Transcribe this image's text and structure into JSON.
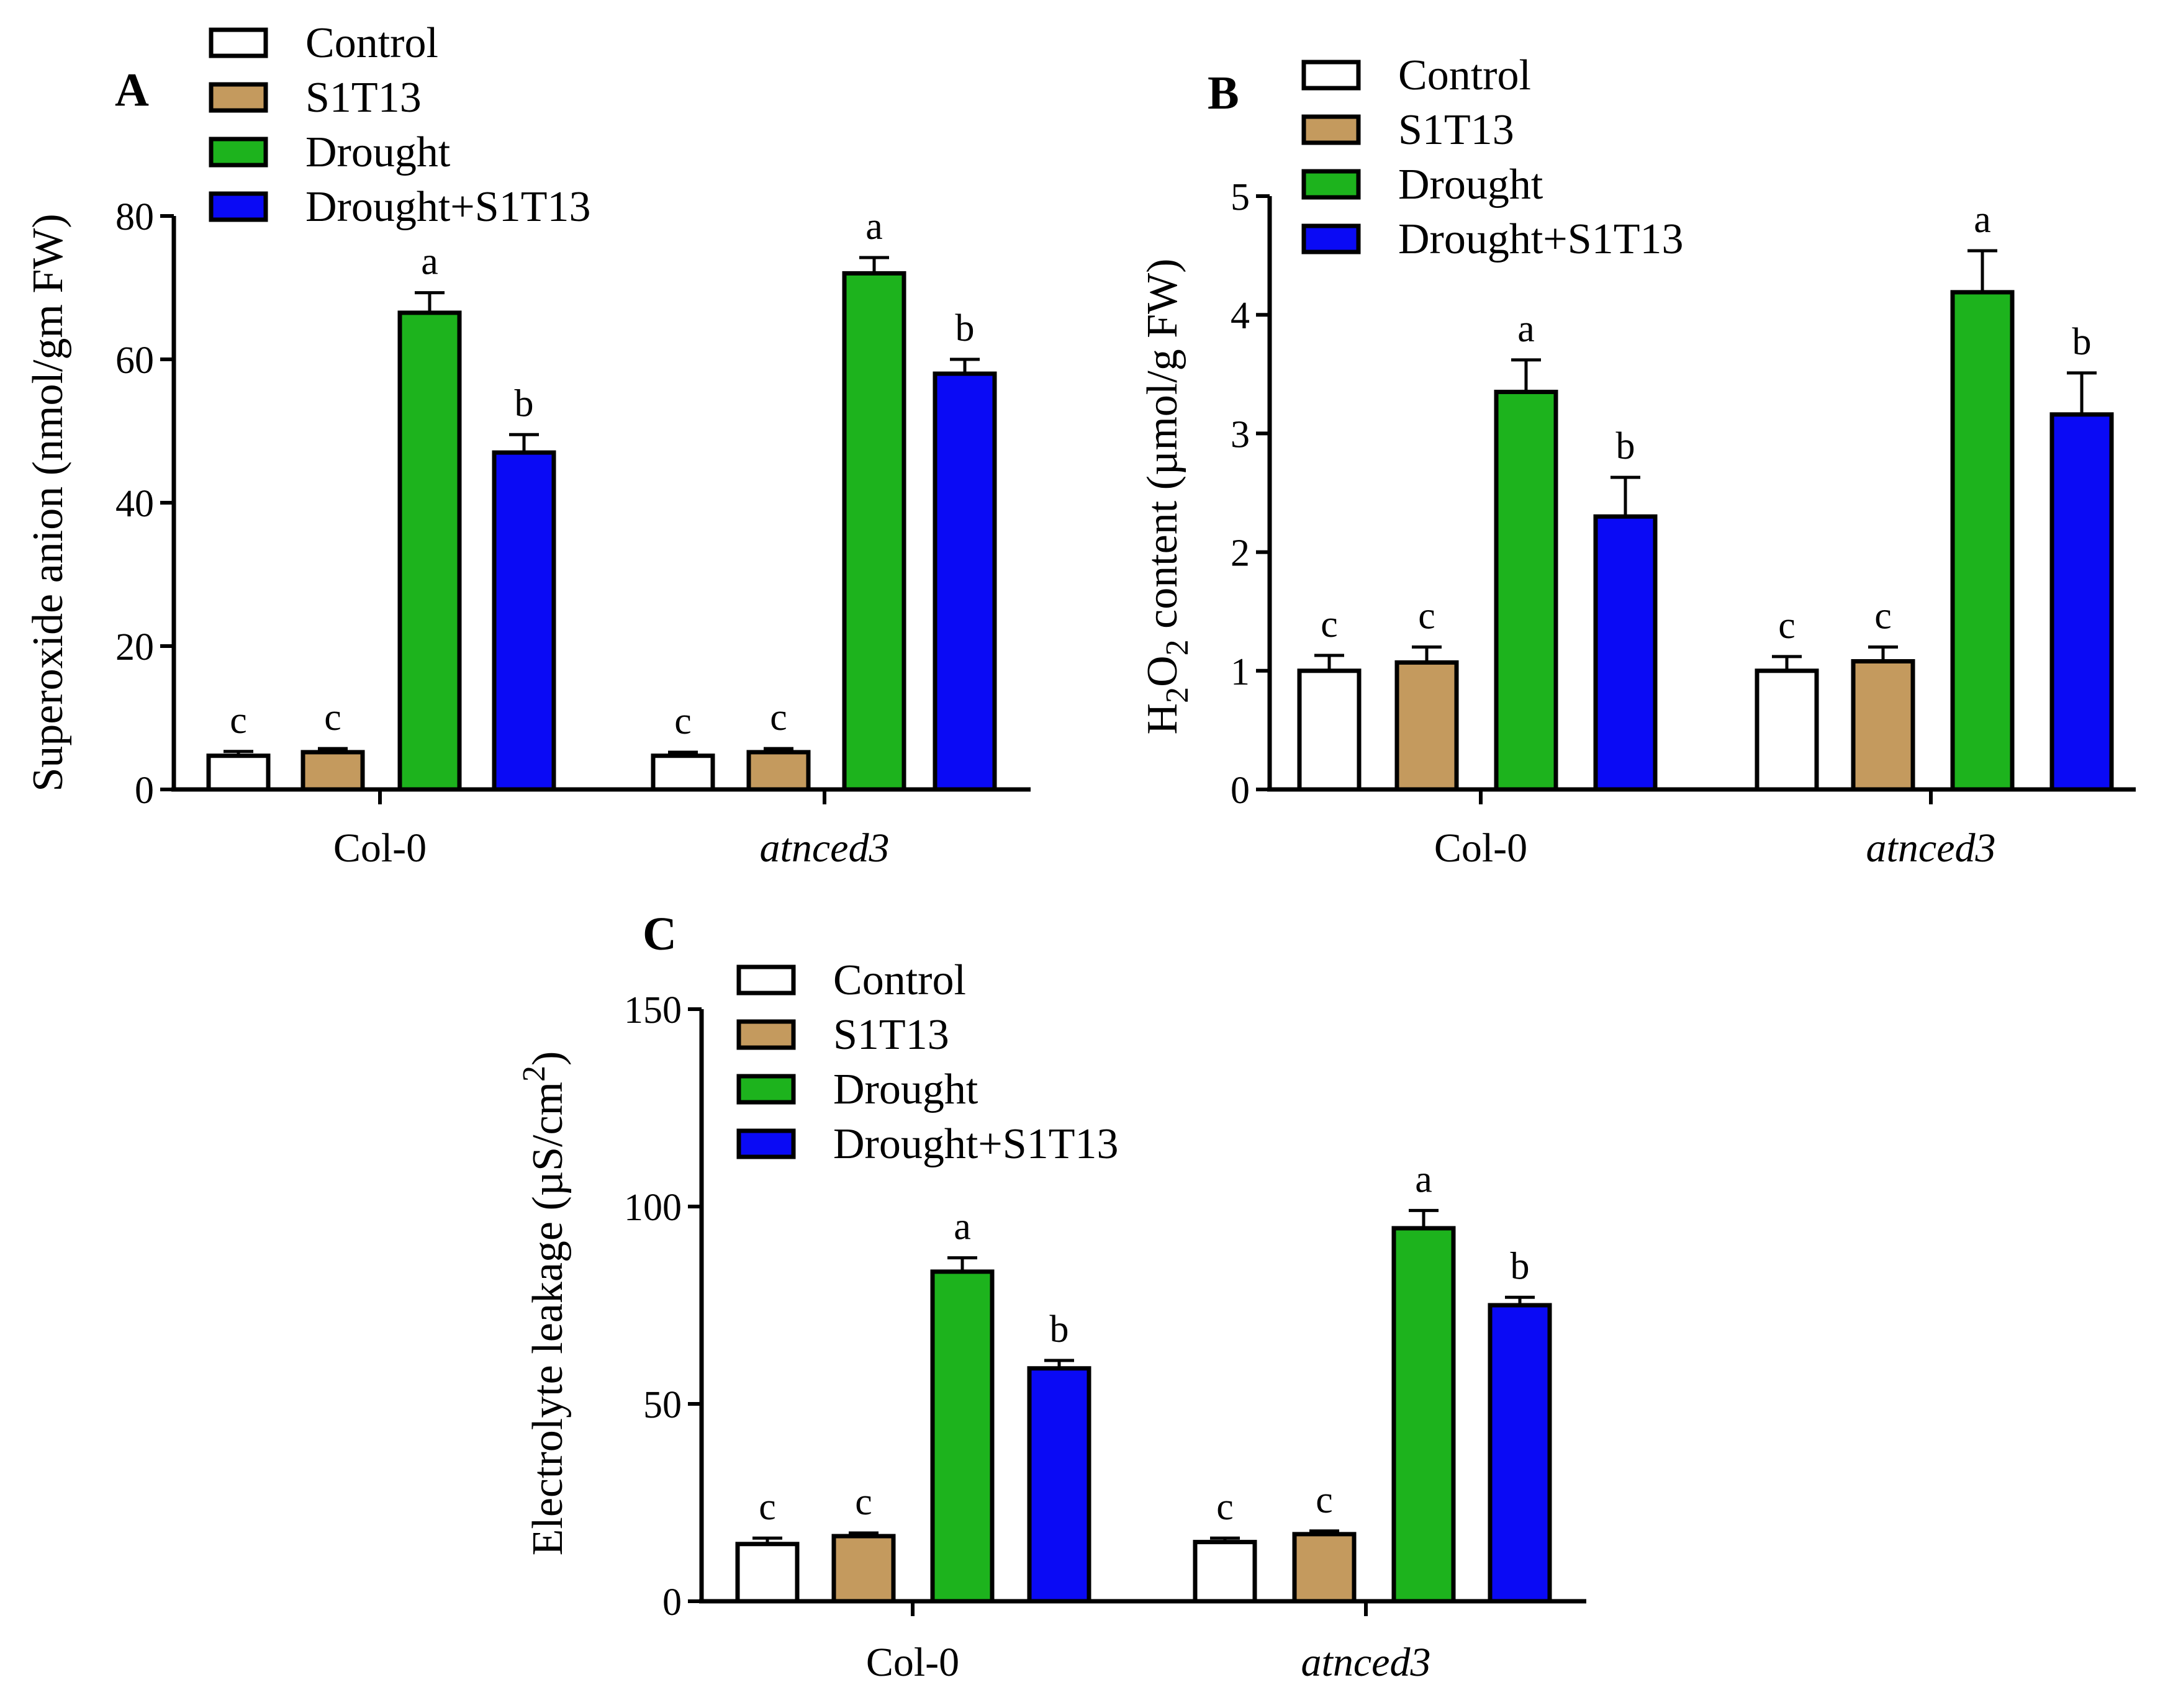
{
  "chart_data": [
    {
      "panel": "A",
      "type": "bar",
      "ylabel": "Superoxide anion (nmol/gm FW)",
      "ylim": [
        0,
        80
      ],
      "yticks": [
        "0",
        "20",
        "40",
        "60",
        "80"
      ],
      "categories": [
        "Col-0",
        "atnced3"
      ],
      "series": [
        {
          "name": "Control",
          "color": "#ffffff",
          "values": [
            4.7,
            4.7
          ],
          "errors": [
            0.6,
            0.5
          ],
          "letters": [
            "c",
            "c"
          ]
        },
        {
          "name": "S1T13",
          "color": "#c49a5e",
          "values": [
            5.2,
            5.2
          ],
          "errors": [
            0.5,
            0.5
          ],
          "letters": [
            "c",
            "c"
          ]
        },
        {
          "name": "Drought",
          "color": "#1db31d",
          "values": [
            66.5,
            72.0
          ],
          "errors": [
            2.8,
            2.2
          ],
          "letters": [
            "a",
            "a"
          ]
        },
        {
          "name": "Drought+S1T13",
          "color": "#0a0af5",
          "values": [
            47.0,
            58.0
          ],
          "errors": [
            2.5,
            2.0
          ],
          "letters": [
            "b",
            "b"
          ]
        }
      ]
    },
    {
      "panel": "B",
      "type": "bar",
      "ylabel_main": "H",
      "ylabel_sub1": "2",
      "ylabel_mid": "O",
      "ylabel_sub2": "2",
      "ylabel_rest": " content (µmol/g FW)",
      "ylim": [
        0,
        5
      ],
      "yticks": [
        "0",
        "1",
        "2",
        "3",
        "4",
        "5"
      ],
      "categories": [
        "Col-0",
        "atnced3"
      ],
      "series": [
        {
          "name": "Control",
          "color": "#ffffff",
          "values": [
            1.0,
            1.0
          ],
          "errors": [
            0.13,
            0.12
          ],
          "letters": [
            "c",
            "c"
          ]
        },
        {
          "name": "S1T13",
          "color": "#c49a5e",
          "values": [
            1.07,
            1.08
          ],
          "errors": [
            0.13,
            0.12
          ],
          "letters": [
            "c",
            "c"
          ]
        },
        {
          "name": "Drought",
          "color": "#1db31d",
          "values": [
            3.35,
            4.19
          ],
          "errors": [
            0.27,
            0.35
          ],
          "letters": [
            "a",
            "a"
          ]
        },
        {
          "name": "Drought+S1T13",
          "color": "#0a0af5",
          "values": [
            2.3,
            3.16
          ],
          "errors": [
            0.33,
            0.35
          ],
          "letters": [
            "b",
            "b"
          ]
        }
      ]
    },
    {
      "panel": "C",
      "type": "bar",
      "ylabel_main": "Electrolyte leakage (µS/cm",
      "ylabel_sup": "2",
      "ylabel_end": ")",
      "ylim": [
        0,
        150
      ],
      "yticks": [
        "0",
        "50",
        "100",
        "150"
      ],
      "categories": [
        "Col-0",
        "atnced3"
      ],
      "series": [
        {
          "name": "Control",
          "color": "#ffffff",
          "values": [
            14.5,
            15.0
          ],
          "errors": [
            1.5,
            1.0
          ],
          "letters": [
            "c",
            "c"
          ]
        },
        {
          "name": "S1T13",
          "color": "#c49a5e",
          "values": [
            16.5,
            17.0
          ],
          "errors": [
            0.8,
            0.8
          ],
          "letters": [
            "c",
            "c"
          ]
        },
        {
          "name": "Drought",
          "color": "#1db31d",
          "values": [
            83.5,
            94.5
          ],
          "errors": [
            3.5,
            4.5
          ],
          "letters": [
            "a",
            "a"
          ]
        },
        {
          "name": "Drought+S1T13",
          "color": "#0a0af5",
          "values": [
            59.0,
            75.0
          ],
          "errors": [
            2.0,
            2.0
          ],
          "letters": [
            "b",
            "b"
          ]
        }
      ]
    }
  ]
}
